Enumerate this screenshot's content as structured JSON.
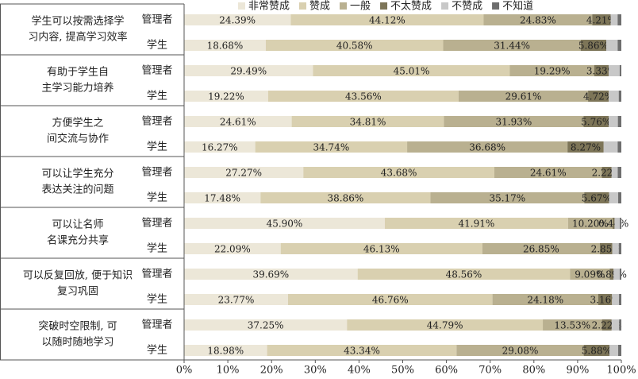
{
  "chart_data": {
    "type": "stacked-bar",
    "orientation": "horizontal",
    "groups": [
      [
        "学生可以按需选择学",
        "习内容, 提高学习效率"
      ],
      [
        "有助于学生自",
        "主学习能力培养"
      ],
      [
        "方便学生之",
        "间交流与协作"
      ],
      [
        "可以让学生充分",
        "表达关注的问题"
      ],
      [
        "可以让名师",
        "名课充分共享"
      ],
      [
        "可以反复回放, 便于知识",
        "复习巩固"
      ],
      [
        "突破时空限制, 可",
        "以随时随地学习"
      ]
    ],
    "roles": [
      "管理者",
      "学生"
    ],
    "series": [
      {
        "name": "非常赞成",
        "color": "#ece7d8",
        "values": [
          24.39,
          18.68,
          29.49,
          19.22,
          24.61,
          16.27,
          27.27,
          17.48,
          45.9,
          22.09,
          39.69,
          23.77,
          37.25,
          18.98
        ],
        "value_labels": [
          "24.39%",
          "18.68%",
          "29.49%",
          "19.22%",
          "24.61%",
          "16.27%",
          "27.27%",
          "17.48%",
          "45.90%",
          "22.09%",
          "39.69%",
          "23.77%",
          "37.25%",
          "18.98%"
        ]
      },
      {
        "name": "赞成",
        "color": "#d9d0b0",
        "values": [
          44.12,
          40.58,
          45.01,
          43.56,
          34.81,
          34.74,
          43.68,
          38.86,
          41.91,
          46.13,
          48.56,
          46.76,
          44.79,
          43.34
        ],
        "value_labels": [
          "44.12%",
          "40.58%",
          "45.01%",
          "43.56%",
          "34.81%",
          "34.74%",
          "43.68%",
          "38.86%",
          "41.91%",
          "46.13%",
          "48.56%",
          "46.76%",
          "44.79%",
          "43.34%"
        ]
      },
      {
        "name": "一般",
        "color": "#b9b090",
        "values": [
          24.83,
          31.44,
          19.29,
          29.61,
          31.93,
          36.68,
          24.61,
          35.17,
          10.2,
          26.85,
          9.09,
          24.18,
          13.53,
          29.08
        ],
        "value_labels": [
          "24.83%",
          "31.44%",
          "19.29%",
          "29.61%",
          "31.93%",
          "36.68%",
          "24.61%",
          "35.17%",
          "10.20%",
          "26.85%",
          "9.09%",
          "24.18%",
          "13.53%",
          "29.08%"
        ]
      },
      {
        "name": "不太赞成",
        "color": "#7d7558",
        "values": [
          4.21,
          5.86,
          3.33,
          4.72,
          5.76,
          8.27,
          2.22,
          5.67,
          0.44,
          2.85,
          0.89,
          3.16,
          2.22,
          5.88
        ],
        "value_labels": [
          "4.21%",
          "5.86%",
          "3.33%",
          "4.72%",
          "5.76%",
          "8.27%",
          "2.22%",
          "5.67%",
          "0.44%",
          "2.85%",
          "0.89%",
          "3.16%",
          "2.22%",
          "5.88%"
        ]
      },
      {
        "name": "不赞成",
        "color": "#c8c8c8",
        "values": [
          1.6,
          2.6,
          2.5,
          2.3,
          2.1,
          3.2,
          1.4,
          2.1,
          1.2,
          1.5,
          1.4,
          1.6,
          1.7,
          2.0
        ]
      },
      {
        "name": "不知道",
        "color": "#6e6e6e",
        "values": [
          0.85,
          0.84,
          0.38,
          0.59,
          0.79,
          0.84,
          0.82,
          0.72,
          0.35,
          0.58,
          0.37,
          0.53,
          0.51,
          0.72
        ]
      }
    ],
    "xlim": [
      0,
      100
    ],
    "xticks": [
      {
        "value": 0,
        "label": "0%"
      },
      {
        "value": 10,
        "label": "10%"
      },
      {
        "value": 20,
        "label": "20%"
      },
      {
        "value": 30,
        "label": "30%"
      },
      {
        "value": 40,
        "label": "40%"
      },
      {
        "value": 50,
        "label": "50%"
      },
      {
        "value": 60,
        "label": "60%"
      },
      {
        "value": 70,
        "label": "70%"
      },
      {
        "value": 80,
        "label": "80%"
      },
      {
        "value": 90,
        "label": "90%"
      },
      {
        "value": 100,
        "label": "100%"
      }
    ],
    "legend": "top"
  }
}
